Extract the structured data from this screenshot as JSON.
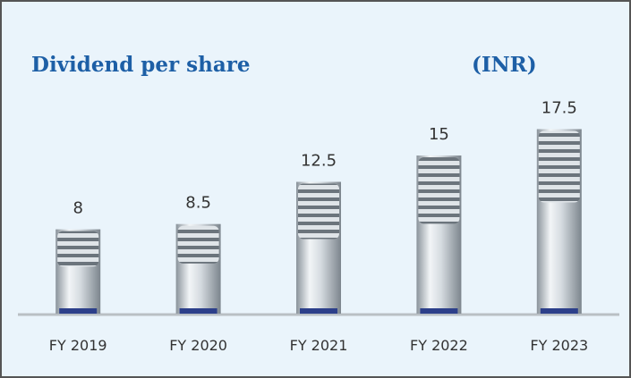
{
  "chart_data": {
    "type": "bar",
    "title": "Dividend per share",
    "unit": "(INR)",
    "categories": [
      "FY 2019",
      "FY 2020",
      "FY 2021",
      "FY 2022",
      "FY 2023"
    ],
    "values": [
      8,
      8.5,
      12.5,
      15,
      17.5
    ],
    "color": "#c9d0d6"
  }
}
